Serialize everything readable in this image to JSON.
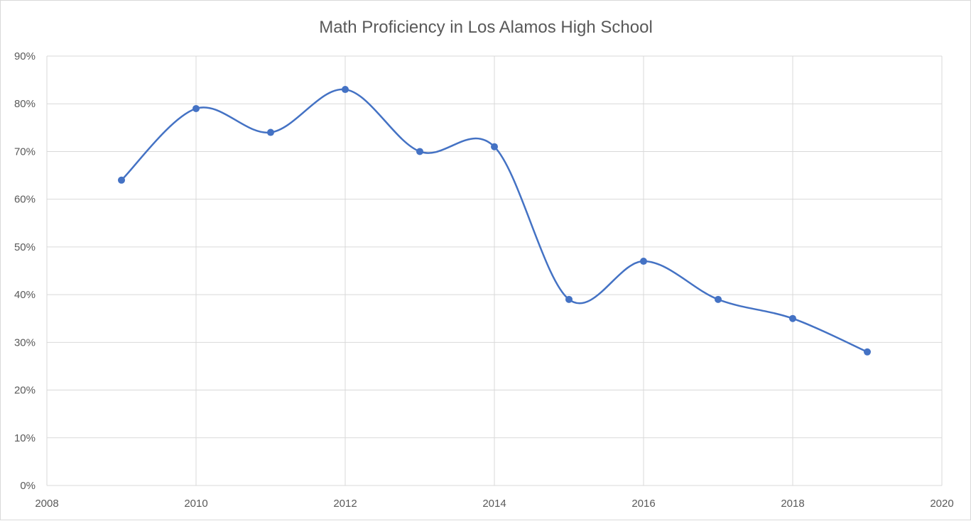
{
  "chart_data": {
    "type": "scatter",
    "title": "Math Proficiency in Los Alamos High School",
    "xlabel": "",
    "ylabel": "",
    "xlim": [
      2008,
      2020
    ],
    "ylim": [
      0,
      0.9
    ],
    "x_ticks": [
      2008,
      2010,
      2012,
      2014,
      2016,
      2018,
      2020
    ],
    "y_ticks": [
      0,
      0.1,
      0.2,
      0.3,
      0.4,
      0.5,
      0.6,
      0.7,
      0.8,
      0.9
    ],
    "y_tick_labels": [
      "0%",
      "10%",
      "20%",
      "30%",
      "40%",
      "50%",
      "60%",
      "70%",
      "80%",
      "90%"
    ],
    "x_tick_labels": [
      "2008",
      "2010",
      "2012",
      "2014",
      "2016",
      "2018",
      "2020"
    ],
    "grid": true,
    "line_style": "smooth",
    "markers": true,
    "legend": "none",
    "colors": {
      "series": "#4472c4",
      "grid": "#d9d9d9",
      "text": "#595959"
    },
    "series": [
      {
        "x": [
          2009,
          2010,
          2011,
          2012,
          2013,
          2014,
          2015,
          2016,
          2017,
          2018,
          2019
        ],
        "values": [
          0.64,
          0.79,
          0.74,
          0.83,
          0.7,
          0.71,
          0.39,
          0.47,
          0.39,
          0.35,
          0.28
        ]
      }
    ]
  }
}
